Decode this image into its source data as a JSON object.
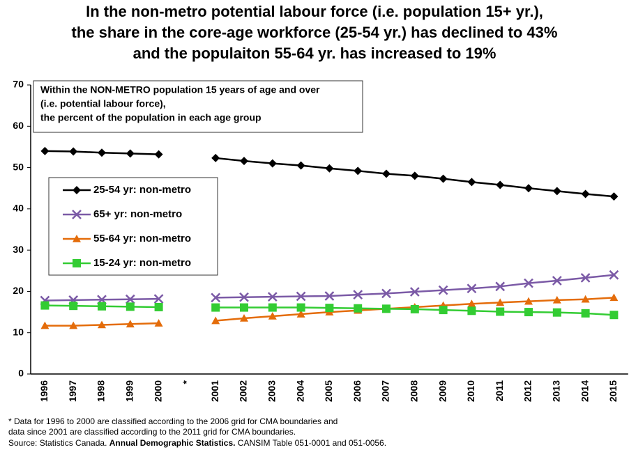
{
  "chart_data": {
    "type": "line",
    "title": [
      "In the non-metro potential labour force (i.e. population 15+ yr.),",
      "the share in the core-age workforce (25-54 yr.) has declined to 43%",
      "and the populaiton 55-64 yr. has increased to 19%"
    ],
    "annotation": [
      "Within the NON-METRO population 15 years of age and over",
      "(i.e. potential labour force),",
      "the percent of the population in each age group"
    ],
    "categories": [
      "1996",
      "1997",
      "1998",
      "1999",
      "2000",
      "*",
      "2001",
      "2002",
      "2003",
      "2004",
      "2005",
      "2006",
      "2007",
      "2008",
      "2009",
      "2010",
      "2011",
      "2012",
      "2013",
      "2014",
      "2015"
    ],
    "series": [
      {
        "name": "25-54 yr: non-metro",
        "color": "#000000",
        "marker": "diamond",
        "values": [
          54.0,
          53.9,
          53.6,
          53.4,
          53.2,
          null,
          52.3,
          51.6,
          51.0,
          50.5,
          49.8,
          49.2,
          48.5,
          48.0,
          47.3,
          46.5,
          45.8,
          45.0,
          44.3,
          43.6,
          43.0
        ]
      },
      {
        "name": "65+ yr: non-metro",
        "color": "#7b5aa6",
        "marker": "x",
        "values": [
          17.8,
          17.9,
          18.0,
          18.1,
          18.2,
          null,
          18.5,
          18.6,
          18.7,
          18.8,
          18.9,
          19.2,
          19.5,
          19.9,
          20.3,
          20.7,
          21.2,
          22.0,
          22.6,
          23.3,
          24.0
        ]
      },
      {
        "name": "55-64 yr: non-metro",
        "color": "#e46c0a",
        "marker": "triangle",
        "values": [
          11.7,
          11.7,
          11.9,
          12.1,
          12.3,
          null,
          12.9,
          13.5,
          14.0,
          14.5,
          15.0,
          15.4,
          15.8,
          16.2,
          16.6,
          17.0,
          17.3,
          17.6,
          17.9,
          18.1,
          18.5
        ]
      },
      {
        "name": "15-24 yr: non-metro",
        "color": "#33cc33",
        "marker": "square",
        "values": [
          16.6,
          16.5,
          16.4,
          16.3,
          16.2,
          null,
          16.1,
          16.1,
          16.1,
          16.1,
          16.0,
          15.9,
          15.8,
          15.7,
          15.5,
          15.3,
          15.1,
          15.0,
          14.9,
          14.7,
          14.3
        ]
      }
    ],
    "ylim": [
      0,
      70
    ],
    "yticks": [
      0,
      10,
      20,
      30,
      40,
      50,
      60,
      70
    ],
    "grid": false,
    "notes": [
      "* Data for 1996 to 2000 are classified according to the 2006 grid for CMA boundaries and",
      "data since 2001 are classified according to the 2011 grid for CMA boundaries."
    ],
    "source": [
      "Source: Statistics Canada. ",
      "Annual Demographic Statistics.",
      " CANSIM Table 051-0001 and 051-0056."
    ]
  }
}
